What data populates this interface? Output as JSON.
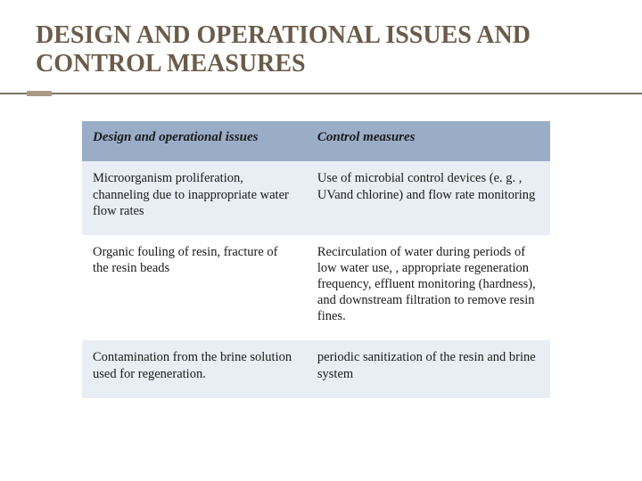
{
  "slide": {
    "title": "DESIGN AND OPERATIONAL ISSUES AND CONTROL MEASURES",
    "title_color": "#6b5b4a",
    "title_fontsize": 28,
    "accent_color": "#a89a87",
    "rule_color": "#7d7267",
    "background_color": "#ffffff"
  },
  "table": {
    "header_bg": "#9aadc7",
    "row_alt_bg": "#e9eef4",
    "row_bg": "#ffffff",
    "text_color": "#1a1a1a",
    "font_family": "Georgia, Times New Roman, serif",
    "header_fontsize": 15,
    "cell_fontsize": 14.5,
    "columns": [
      "Design and operational issues",
      "Control measures"
    ],
    "column_widths": [
      "48%",
      "52%"
    ],
    "rows": [
      [
        "Microorganism proliferation, channeling due to inappropriate water flow rates",
        "Use of microbial control devices (e. g. , UVand chlorine) and flow rate monitoring"
      ],
      [
        "Organic fouling of resin, fracture of the resin beads",
        "Recirculation of water during periods of low water use, , appropriate regeneration frequency, effluent monitoring (hardness), and downstream filtration to remove resin fines."
      ],
      [
        "Contamination from the brine solution used for regeneration.",
        "periodic sanitization of the resin and brine system"
      ]
    ]
  }
}
